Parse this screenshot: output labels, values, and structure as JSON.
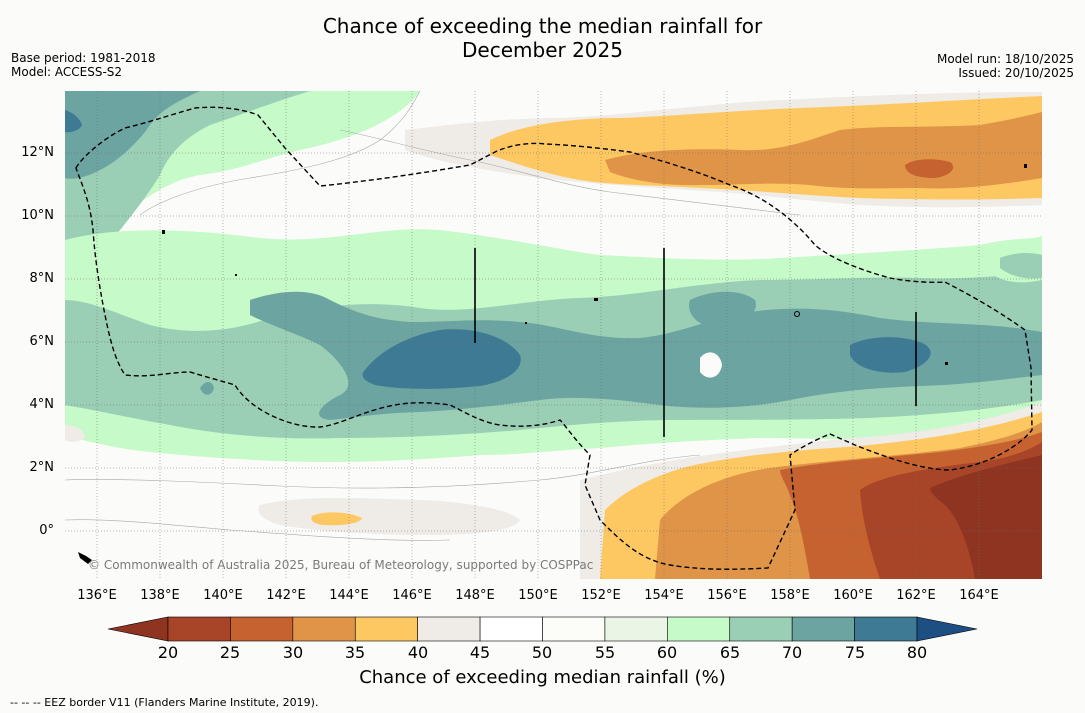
{
  "header": {
    "title_line1": "Chance of exceeding the median rainfall for",
    "title_line2": "December 2025",
    "base_period": "Base period: 1981-2018",
    "model": "Model: ACCESS-S2",
    "model_run": "Model run: 18/10/2025",
    "issued": "Issued: 20/10/2025"
  },
  "map": {
    "lon_labels": [
      "136°E",
      "138°E",
      "140°E",
      "142°E",
      "144°E",
      "146°E",
      "148°E",
      "150°E",
      "152°E",
      "154°E",
      "156°E",
      "158°E",
      "160°E",
      "162°E",
      "164°E"
    ],
    "lat_labels": [
      "12°N",
      "10°N",
      "8°N",
      "6°N",
      "4°N",
      "2°N",
      "0°"
    ],
    "copyright": "© Commonwealth of Australia 2025, Bureau of Meteorology, supported by COSPPac"
  },
  "colorbar": {
    "ticks": [
      "20",
      "25",
      "30",
      "35",
      "40",
      "45",
      "50",
      "55",
      "60",
      "65",
      "70",
      "75",
      "80"
    ],
    "colors": [
      "#a84428",
      "#c6622f",
      "#df9447",
      "#fdc862",
      "#efebe6",
      "#ffffff",
      "#fcfcf9",
      "#eaf5e6",
      "#c6fac8",
      "#9acfb5",
      "#6ca4a1",
      "#3f7a95"
    ],
    "under_color": "#8e3420",
    "over_color": "#1e4f82",
    "label": "Chance of exceeding median rainfall (%)"
  },
  "footer": {
    "legend_text": "-- -- -- EEZ border V11 (Flanders Marine Institute, 2019)."
  }
}
